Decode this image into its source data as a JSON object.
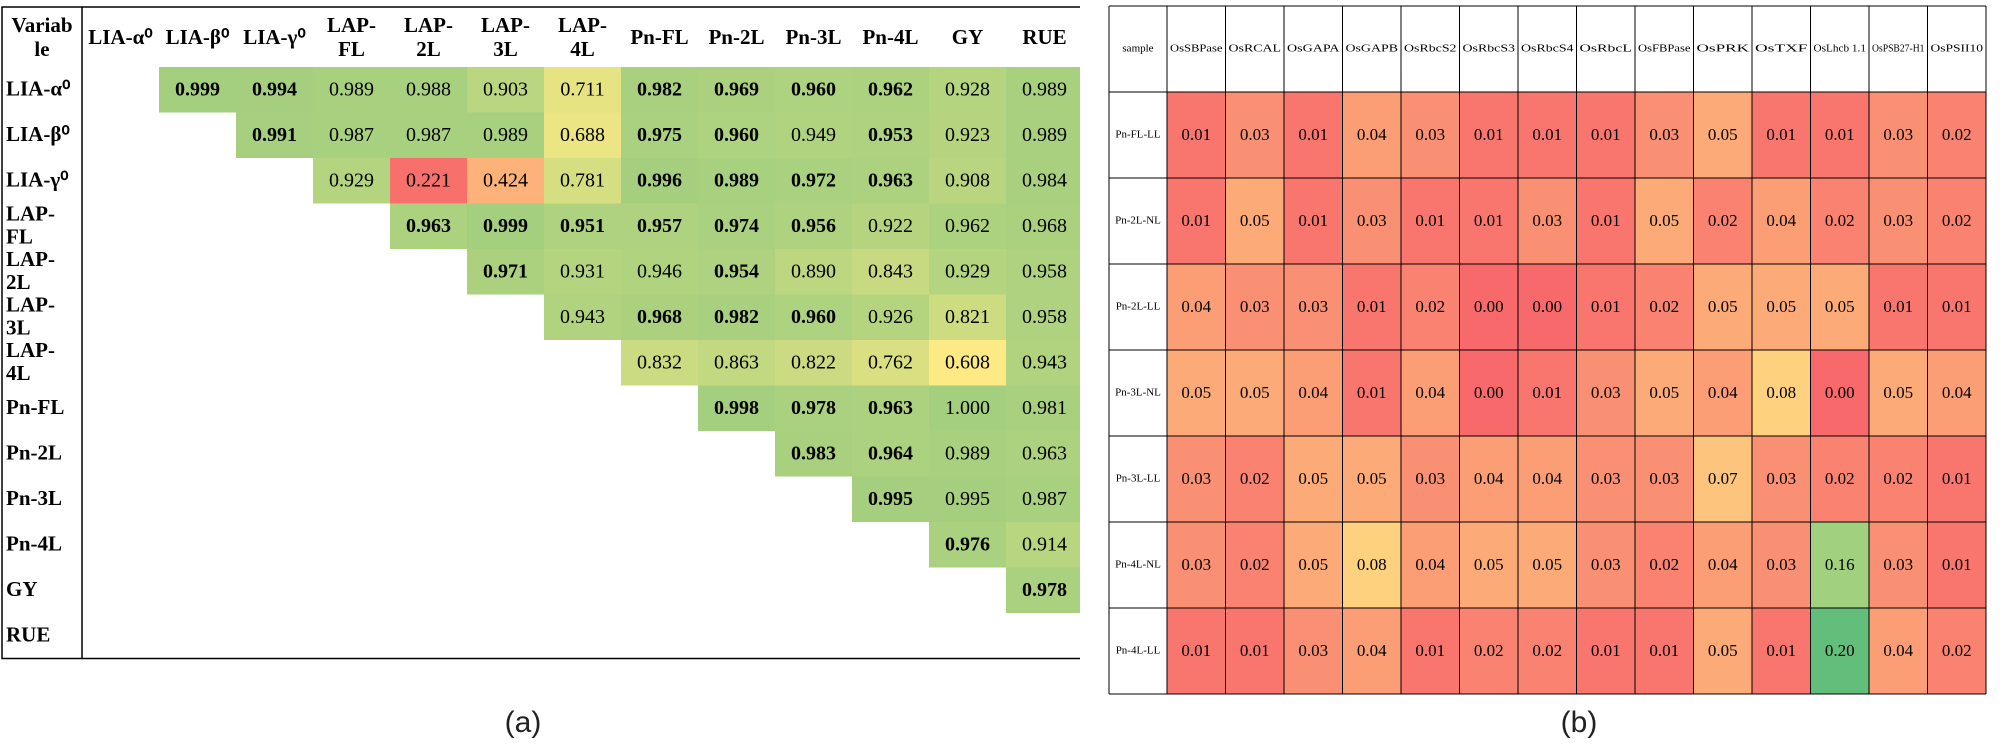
{
  "chart_data": [
    {
      "type": "heatmap",
      "panel_label": "(a)",
      "corner_label_lines": [
        "Variab",
        "le"
      ],
      "columns": [
        {
          "lines": [
            "LIA-α⁰"
          ]
        },
        {
          "lines": [
            "LIA-β⁰"
          ]
        },
        {
          "lines": [
            "LIA-γ⁰"
          ]
        },
        {
          "lines": [
            "LAP-",
            "FL"
          ]
        },
        {
          "lines": [
            "LAP-",
            "2L"
          ]
        },
        {
          "lines": [
            "LAP-",
            "3L"
          ]
        },
        {
          "lines": [
            "LAP-",
            "4L"
          ]
        },
        {
          "lines": [
            "Pn-FL"
          ]
        },
        {
          "lines": [
            "Pn-2L"
          ]
        },
        {
          "lines": [
            "Pn-3L"
          ]
        },
        {
          "lines": [
            "Pn-4L"
          ]
        },
        {
          "lines": [
            "GY"
          ]
        },
        {
          "lines": [
            "RUE"
          ]
        }
      ],
      "rows": [
        {
          "lines": [
            "LIA-α⁰"
          ]
        },
        {
          "lines": [
            "LIA-β⁰"
          ]
        },
        {
          "lines": [
            "LIA-γ⁰"
          ]
        },
        {
          "lines": [
            "LAP-",
            "FL"
          ]
        },
        {
          "lines": [
            "LAP-",
            "2L"
          ]
        },
        {
          "lines": [
            "LAP-",
            "3L"
          ]
        },
        {
          "lines": [
            "LAP-",
            "4L"
          ]
        },
        {
          "lines": [
            "Pn-FL"
          ]
        },
        {
          "lines": [
            "Pn-2L"
          ]
        },
        {
          "lines": [
            "Pn-3L"
          ]
        },
        {
          "lines": [
            "Pn-4L"
          ]
        },
        {
          "lines": [
            "GY"
          ]
        },
        {
          "lines": [
            "RUE"
          ]
        }
      ],
      "values": [
        [
          null,
          "0.999",
          "0.994",
          "0.989",
          "0.988",
          "0.903",
          "0.711",
          "0.982",
          "0.969",
          "0.960",
          "0.962",
          "0.928",
          "0.989"
        ],
        [
          null,
          null,
          "0.991",
          "0.987",
          "0.987",
          "0.989",
          "0.688",
          "0.975",
          "0.960",
          "0.949",
          "0.953",
          "0.923",
          "0.989"
        ],
        [
          null,
          null,
          null,
          "0.929",
          "0.221",
          "0.424",
          "0.781",
          "0.996",
          "0.989",
          "0.972",
          "0.963",
          "0.908",
          "0.984"
        ],
        [
          null,
          null,
          null,
          null,
          "0.963",
          "0.999",
          "0.951",
          "0.957",
          "0.974",
          "0.956",
          "0.922",
          "0.962",
          "0.968"
        ],
        [
          null,
          null,
          null,
          null,
          null,
          "0.971",
          "0.931",
          "0.946",
          "0.954",
          "0.890",
          "0.843",
          "0.929",
          "0.958"
        ],
        [
          null,
          null,
          null,
          null,
          null,
          null,
          "0.943",
          "0.968",
          "0.982",
          "0.960",
          "0.926",
          "0.821",
          "0.958"
        ],
        [
          null,
          null,
          null,
          null,
          null,
          null,
          null,
          "0.832",
          "0.863",
          "0.822",
          "0.762",
          "0.608",
          "0.943"
        ],
        [
          null,
          null,
          null,
          null,
          null,
          null,
          null,
          null,
          "0.998",
          "0.978",
          "0.963",
          "1.000",
          "0.981"
        ],
        [
          null,
          null,
          null,
          null,
          null,
          null,
          null,
          null,
          null,
          "0.983",
          "0.964",
          "0.989",
          "0.963"
        ],
        [
          null,
          null,
          null,
          null,
          null,
          null,
          null,
          null,
          null,
          null,
          "0.995",
          "0.995",
          "0.987"
        ],
        [
          null,
          null,
          null,
          null,
          null,
          null,
          null,
          null,
          null,
          null,
          null,
          "0.976",
          "0.914"
        ],
        [
          null,
          null,
          null,
          null,
          null,
          null,
          null,
          null,
          null,
          null,
          null,
          null,
          "0.978"
        ],
        [
          null,
          null,
          null,
          null,
          null,
          null,
          null,
          null,
          null,
          null,
          null,
          null,
          null
        ]
      ],
      "bold": [
        [
          false,
          true,
          true,
          false,
          false,
          false,
          false,
          true,
          true,
          true,
          true,
          false,
          false
        ],
        [
          false,
          false,
          true,
          false,
          false,
          false,
          false,
          true,
          true,
          false,
          true,
          false,
          false
        ],
        [
          false,
          false,
          false,
          false,
          false,
          false,
          false,
          true,
          true,
          true,
          true,
          false,
          false
        ],
        [
          false,
          false,
          false,
          false,
          true,
          true,
          true,
          true,
          true,
          true,
          false,
          false,
          false
        ],
        [
          false,
          false,
          false,
          false,
          false,
          true,
          false,
          false,
          true,
          false,
          false,
          false,
          false
        ],
        [
          false,
          false,
          false,
          false,
          false,
          false,
          false,
          true,
          true,
          true,
          false,
          false,
          false
        ],
        [
          false,
          false,
          false,
          false,
          false,
          false,
          false,
          false,
          false,
          false,
          false,
          false,
          false
        ],
        [
          false,
          false,
          false,
          false,
          false,
          false,
          false,
          false,
          true,
          true,
          true,
          false,
          false
        ],
        [
          false,
          false,
          false,
          false,
          false,
          false,
          false,
          false,
          false,
          true,
          true,
          false,
          false
        ],
        [
          false,
          false,
          false,
          false,
          false,
          false,
          false,
          false,
          false,
          false,
          true,
          false,
          false
        ],
        [
          false,
          false,
          false,
          false,
          false,
          false,
          false,
          false,
          false,
          false,
          false,
          true,
          false
        ],
        [
          false,
          false,
          false,
          false,
          false,
          false,
          false,
          false,
          false,
          false,
          false,
          false,
          true
        ],
        [
          false,
          false,
          false,
          false,
          false,
          false,
          false,
          false,
          false,
          false,
          false,
          false,
          false
        ]
      ],
      "color_scale": {
        "min": 0.2,
        "max": 1.0,
        "colors": [
          "#f8696b",
          "#ffeb84",
          "#a4cf7f"
        ]
      }
    },
    {
      "type": "heatmap",
      "panel_label": "(b)",
      "corner_label": "sample",
      "columns": [
        "OsSBPase",
        "OsRCAL",
        "OsGAPA",
        "OsGAPB",
        "OsRbcS2",
        "OsRbcS3",
        "OsRbcS4",
        "OsRbcL",
        "OsFBPase",
        "OsPRK",
        "OsTXF",
        "OsLhcb 1.1",
        "OsPSB27-H1",
        "OsPSII10"
      ],
      "rows": [
        "Pn-FL-LL",
        "Pn-2L-NL",
        "Pn-2L-LL",
        "Pn-3L-NL",
        "Pn-3L-LL",
        "Pn-4L-NL",
        "Pn-4L-LL"
      ],
      "values": [
        [
          "0.01",
          "0.03",
          "0.01",
          "0.04",
          "0.03",
          "0.01",
          "0.01",
          "0.01",
          "0.03",
          "0.05",
          "0.01",
          "0.01",
          "0.03",
          "0.02"
        ],
        [
          "0.01",
          "0.05",
          "0.01",
          "0.03",
          "0.01",
          "0.01",
          "0.03",
          "0.01",
          "0.05",
          "0.02",
          "0.04",
          "0.02",
          "0.03",
          "0.02"
        ],
        [
          "0.04",
          "0.03",
          "0.03",
          "0.01",
          "0.02",
          "0.00",
          "0.00",
          "0.01",
          "0.02",
          "0.05",
          "0.05",
          "0.05",
          "0.01",
          "0.01"
        ],
        [
          "0.05",
          "0.05",
          "0.04",
          "0.01",
          "0.04",
          "0.00",
          "0.01",
          "0.03",
          "0.05",
          "0.04",
          "0.08",
          "0.00",
          "0.05",
          "0.04"
        ],
        [
          "0.03",
          "0.02",
          "0.05",
          "0.05",
          "0.03",
          "0.04",
          "0.04",
          "0.03",
          "0.03",
          "0.07",
          "0.03",
          "0.02",
          "0.02",
          "0.01"
        ],
        [
          "0.03",
          "0.02",
          "0.05",
          "0.08",
          "0.04",
          "0.05",
          "0.05",
          "0.03",
          "0.02",
          "0.04",
          "0.03",
          "0.16",
          "0.03",
          "0.01"
        ],
        [
          "0.01",
          "0.01",
          "0.03",
          "0.04",
          "0.01",
          "0.02",
          "0.02",
          "0.01",
          "0.01",
          "0.05",
          "0.01",
          "0.20",
          "0.04",
          "0.02"
        ]
      ],
      "color_scale": {
        "min": 0.0,
        "max": 0.2,
        "colors": [
          "#f8696b",
          "#ffeb84",
          "#63be7b"
        ]
      }
    }
  ]
}
